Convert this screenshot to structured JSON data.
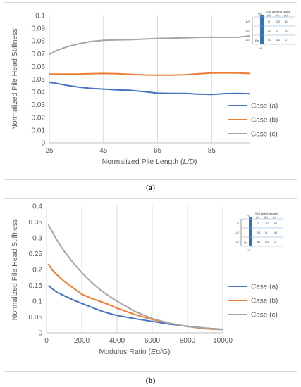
{
  "chart_data": [
    {
      "type": "line",
      "panel_label": "a",
      "xlabel_main": "Normalized Pile Length (",
      "xlabel_var": "L/D",
      "xlabel_end": ")",
      "ylabel": "Normalized Pile Head Stiffness",
      "xlim": [
        25,
        99
      ],
      "ylim": [
        0,
        0.1
      ],
      "xticks": [
        "25",
        "45",
        "65",
        "85"
      ],
      "xtick_values": [
        25,
        45,
        65,
        85
      ],
      "yticks": [
        "0",
        "0.01",
        "0.02",
        "0.03",
        "0.04",
        "0.05",
        "0.06",
        "0.07",
        "0.08",
        "0.09",
        "0.1"
      ],
      "ytick_values": [
        0,
        0.01,
        0.02,
        0.03,
        0.04,
        0.05,
        0.06,
        0.07,
        0.08,
        0.09,
        0.1
      ],
      "grid": "vertical",
      "legend_placement": "right",
      "series": [
        {
          "name": "Case (a)",
          "color": "#4472c4",
          "x": [
            25,
            28,
            32,
            36,
            40,
            45,
            50,
            55,
            60,
            65,
            70,
            75,
            80,
            85,
            90,
            95,
            99
          ],
          "y": [
            0.0475,
            0.0465,
            0.045,
            0.0437,
            0.0428,
            0.0422,
            0.0416,
            0.0412,
            0.0402,
            0.039,
            0.0388,
            0.0388,
            0.0383,
            0.038,
            0.0387,
            0.0388,
            0.0385
          ]
        },
        {
          "name": "Case (b)",
          "color": "#ed7d31",
          "x": [
            25,
            30,
            35,
            40,
            45,
            50,
            55,
            60,
            65,
            70,
            75,
            80,
            85,
            90,
            95,
            99
          ],
          "y": [
            0.054,
            0.054,
            0.054,
            0.0543,
            0.0545,
            0.0543,
            0.0538,
            0.0533,
            0.0532,
            0.0532,
            0.0535,
            0.0542,
            0.0548,
            0.055,
            0.0548,
            0.0545
          ]
        },
        {
          "name": "Case (c)",
          "color": "#a5a5a5",
          "x": [
            25,
            28,
            32,
            36,
            40,
            45,
            50,
            55,
            60,
            65,
            70,
            75,
            80,
            85,
            90,
            95,
            99
          ],
          "y": [
            0.0695,
            0.0728,
            0.0758,
            0.0778,
            0.0795,
            0.0805,
            0.0808,
            0.081,
            0.0815,
            0.082,
            0.0822,
            0.0825,
            0.0828,
            0.083,
            0.0828,
            0.083,
            0.084
          ]
        }
      ],
      "inset": {
        "title": "Soil layering cases",
        "case_labels": [
          "(a)",
          "(b)",
          "(c)"
        ],
        "rows": [
          [
            "G",
            "2G",
            "4G"
          ],
          [
            "2G",
            "G",
            "2G"
          ],
          [
            "4G",
            "4G",
            "G"
          ]
        ],
        "layer_labels": [
          "L/3",
          "L/3",
          "L/3"
        ],
        "top_label": "Fo",
        "mod_label": "Ep",
        "dia_label": "\"d\""
      },
      "caption": "a"
    },
    {
      "type": "line",
      "panel_label": "b",
      "xlabel_main": "Modulus Ratio (",
      "xlabel_var": "Ep/G",
      "xlabel_end": ")",
      "ylabel": "Normalized Pile Head Stiffness",
      "xlim": [
        0,
        10000
      ],
      "ylim": [
        0,
        0.4
      ],
      "xticks": [
        "0",
        "2000",
        "4000",
        "6000",
        "8000",
        "10000"
      ],
      "xtick_values": [
        0,
        2000,
        4000,
        6000,
        8000,
        10000
      ],
      "yticks": [
        "0",
        "0.05",
        "0.1",
        "0.15",
        "0.2",
        "0.25",
        "0.3",
        "0.35",
        "0.4"
      ],
      "ytick_values": [
        0,
        0.05,
        0.1,
        0.15,
        0.2,
        0.25,
        0.3,
        0.35,
        0.4
      ],
      "grid": "vertical",
      "legend_placement": "right",
      "series": [
        {
          "name": "Case (a)",
          "color": "#4472c4",
          "x": [
            100,
            300,
            600,
            1000,
            1500,
            2000,
            2500,
            3000,
            3500,
            4000,
            5000,
            6000,
            7000,
            8000,
            9000,
            10000
          ],
          "y": [
            0.15,
            0.14,
            0.128,
            0.117,
            0.104,
            0.093,
            0.082,
            0.071,
            0.062,
            0.055,
            0.045,
            0.036,
            0.027,
            0.021,
            0.015,
            0.011
          ]
        },
        {
          "name": "Case (b)",
          "color": "#ed7d31",
          "x": [
            100,
            300,
            600,
            1000,
            1500,
            2000,
            2500,
            3000,
            3500,
            4000,
            5000,
            6000,
            7000,
            8000,
            9000,
            10000
          ],
          "y": [
            0.218,
            0.2,
            0.183,
            0.163,
            0.142,
            0.122,
            0.11,
            0.1,
            0.09,
            0.078,
            0.058,
            0.042,
            0.03,
            0.02,
            0.013,
            0.01
          ]
        },
        {
          "name": "Case (c)",
          "color": "#a5a5a5",
          "x": [
            100,
            300,
            600,
            1000,
            1500,
            2000,
            2500,
            3000,
            3500,
            4000,
            5000,
            6000,
            7000,
            8000,
            9000,
            10000
          ],
          "y": [
            0.342,
            0.322,
            0.292,
            0.258,
            0.222,
            0.19,
            0.162,
            0.138,
            0.118,
            0.1,
            0.068,
            0.045,
            0.03,
            0.02,
            0.015,
            0.01
          ]
        }
      ],
      "inset": {
        "title": "Soil layering cases",
        "case_labels": [
          "(a)",
          "(b)",
          "(c)"
        ],
        "rows": [
          [
            "G",
            "2G",
            "4G"
          ],
          [
            "2G",
            "G",
            "2G"
          ],
          [
            "4G",
            "4G",
            "G"
          ]
        ],
        "layer_labels": [
          "L/3",
          "L/3",
          "L/3"
        ],
        "top_label": "Fo",
        "mod_label": "Ep",
        "dia_label": "\"d\""
      },
      "caption": "b"
    }
  ]
}
